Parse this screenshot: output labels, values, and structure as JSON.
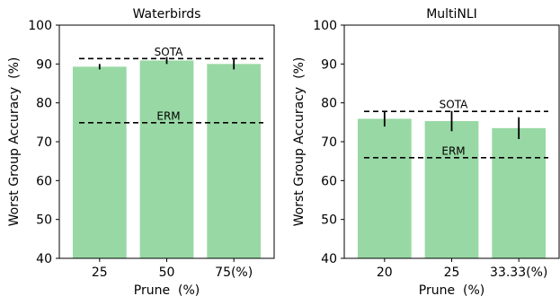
{
  "chart_data": [
    {
      "type": "bar",
      "title": "Waterbirds",
      "xlabel": "Prune  (%)",
      "ylabel": "Worst Group Accuracy  (%)",
      "categories": [
        "25",
        "50",
        "75(%)"
      ],
      "values": [
        89.3,
        90.9,
        90.0
      ],
      "error": [
        0.7,
        0.9,
        1.4
      ],
      "ylim": [
        40,
        100
      ],
      "yticks": [
        "40",
        "50",
        "60",
        "70",
        "80",
        "90",
        "100"
      ],
      "reference_lines": [
        {
          "label": "SOTA",
          "value": 91.4
        },
        {
          "label": "ERM",
          "value": 74.9
        }
      ],
      "bar_color": "#98d8a4",
      "grid": false
    },
    {
      "type": "bar",
      "title": "MultiNLI",
      "xlabel": "Prune  (%)",
      "ylabel": "Worst Group Accuracy  (%)",
      "categories": [
        "20",
        "25",
        "33.33(%)"
      ],
      "values": [
        75.9,
        75.3,
        73.5
      ],
      "error": [
        2.0,
        2.6,
        2.8
      ],
      "ylim": [
        40,
        100
      ],
      "yticks": [
        "40",
        "50",
        "60",
        "70",
        "80",
        "90",
        "100"
      ],
      "reference_lines": [
        {
          "label": "SOTA",
          "value": 77.8
        },
        {
          "label": "ERM",
          "value": 65.9
        }
      ],
      "bar_color": "#98d8a4",
      "grid": false
    }
  ]
}
